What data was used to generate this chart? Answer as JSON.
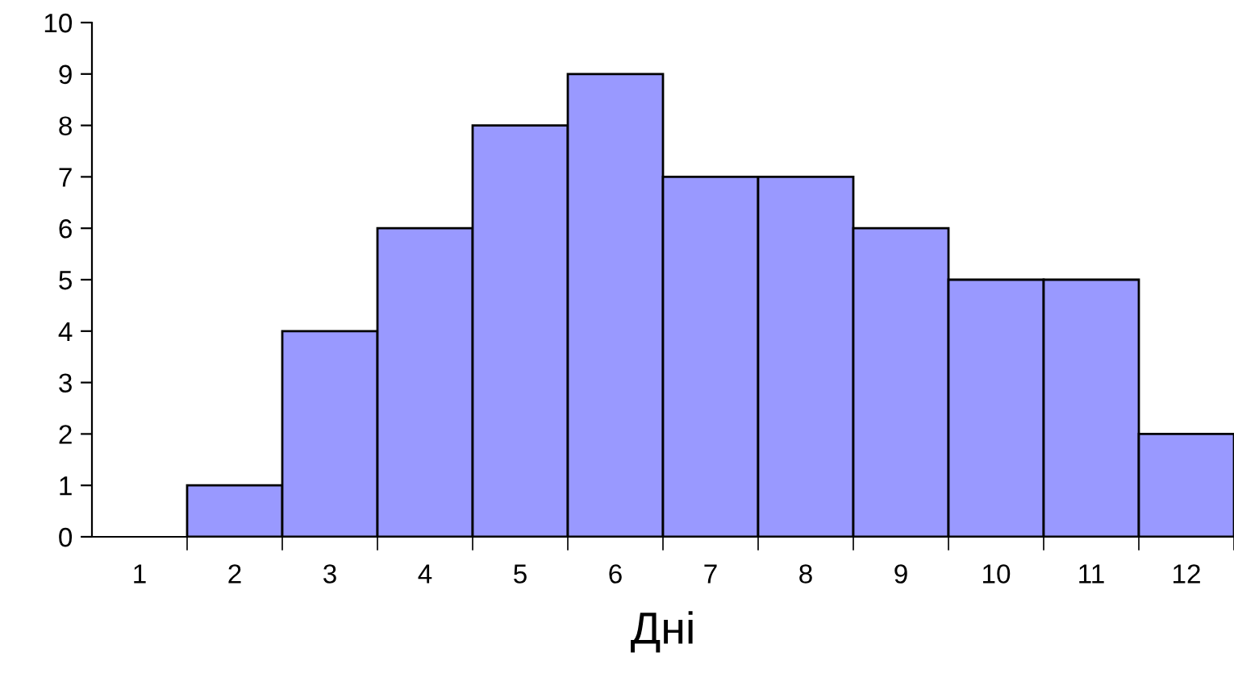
{
  "chart_data": {
    "type": "bar",
    "xlabel": "Дні",
    "categories": [
      "1",
      "2",
      "3",
      "4",
      "5",
      "6",
      "7",
      "8",
      "9",
      "10",
      "11",
      "12"
    ],
    "values": [
      0,
      1,
      4,
      6,
      8,
      9,
      7,
      7,
      6,
      5,
      5,
      2
    ],
    "color": "#9999ff",
    "ylim": [
      0,
      10
    ],
    "yticks": [
      0,
      1,
      2,
      3,
      4,
      5,
      6,
      7,
      8,
      9,
      10
    ],
    "grid": false,
    "legend": false
  }
}
